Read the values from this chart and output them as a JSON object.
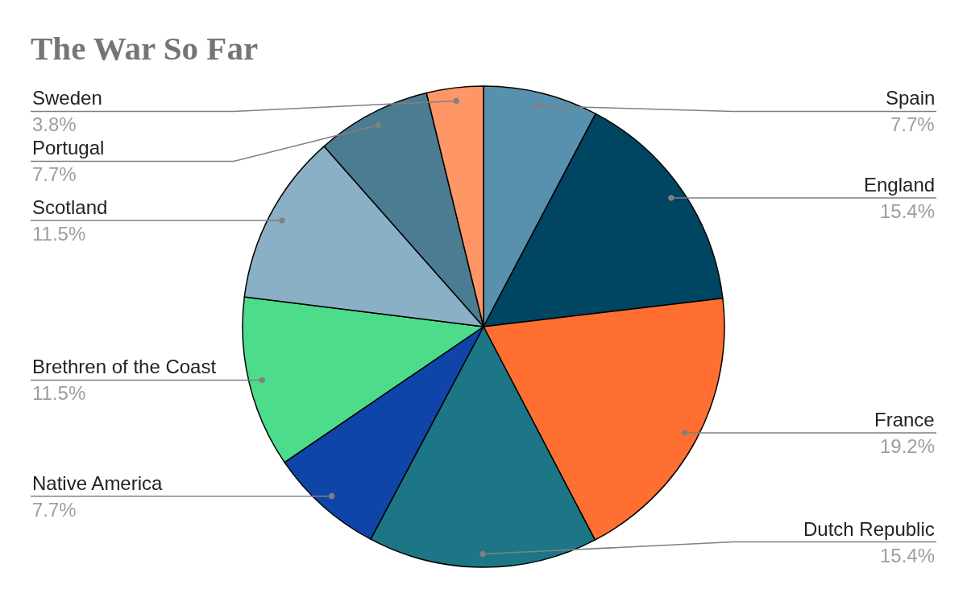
{
  "chart_data": {
    "type": "pie",
    "title": "The War So Far",
    "categories": [
      "Spain",
      "England",
      "France",
      "Dutch Republic",
      "Native America",
      "Brethren of the Coast",
      "Scotland",
      "Portugal",
      "Sweden"
    ],
    "values": [
      7.7,
      15.4,
      19.2,
      15.4,
      7.7,
      11.5,
      11.5,
      7.7,
      3.8
    ],
    "colors": [
      "#5891ad",
      "#004561",
      "#ff6f31",
      "#1c7685",
      "#0f45a8",
      "#4cdc8b",
      "#8ab0c5",
      "#4c7c91",
      "#ff9666"
    ],
    "value_labels": [
      "7.7%",
      "15.4%",
      "19.2%",
      "15.4%",
      "7.7%",
      "11.5%",
      "11.5%",
      "7.7%",
      "3.8%"
    ]
  }
}
